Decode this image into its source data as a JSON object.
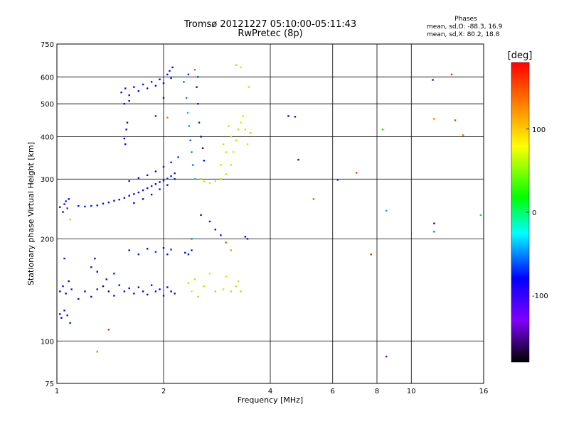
{
  "header": {
    "title": "Tromsø 20121227 05:10:00-05:11:43",
    "subtitle": "RwPretec (8p)"
  },
  "phases_box": {
    "heading": "Phases",
    "line_o": "mean, sd,O: -88.3, 16.9",
    "line_x": "mean, sd,X:  80.2, 18.8"
  },
  "colorbar": {
    "label": "[deg]",
    "range": [
      -180,
      180
    ],
    "ticks": [
      100,
      0,
      -100
    ],
    "colors": [
      "#ff0000",
      "#ff8000",
      "#ffff00",
      "#00ff00",
      "#00ffff",
      "#0000ff",
      "#8000ff",
      "#000000"
    ]
  },
  "chart_data": {
    "type": "scatter",
    "xlabel": "Frequency [MHz]",
    "ylabel": "Stationary phase Virtual Height [km]",
    "x_scale": "log",
    "y_scale": "log",
    "xlim": [
      1,
      16
    ],
    "ylim": [
      75,
      750
    ],
    "x_ticks": [
      1,
      2,
      4,
      6,
      8,
      10,
      16
    ],
    "y_ticks": [
      75,
      100,
      200,
      300,
      400,
      500,
      600,
      750
    ],
    "grid": true,
    "points": [
      [
        1.02,
        248,
        -105
      ],
      [
        1.04,
        240,
        -100
      ],
      [
        1.05,
        253,
        -110
      ],
      [
        1.06,
        258,
        -95
      ],
      [
        1.07,
        246,
        -85
      ],
      [
        1.08,
        262,
        -100
      ],
      [
        1.09,
        228,
        120
      ],
      [
        1.15,
        250,
        -105
      ],
      [
        1.2,
        249,
        -100
      ],
      [
        1.25,
        250,
        -95
      ],
      [
        1.3,
        251,
        -100
      ],
      [
        1.35,
        254,
        -105
      ],
      [
        1.4,
        256,
        -100
      ],
      [
        1.45,
        259,
        -110
      ],
      [
        1.5,
        261,
        -100
      ],
      [
        1.55,
        264,
        -95
      ],
      [
        1.6,
        268,
        -100
      ],
      [
        1.65,
        271,
        -105
      ],
      [
        1.7,
        274,
        -100
      ],
      [
        1.75,
        278,
        -110
      ],
      [
        1.8,
        282,
        -100
      ],
      [
        1.85,
        286,
        -95
      ],
      [
        1.9,
        290,
        -100
      ],
      [
        1.95,
        294,
        -105
      ],
      [
        2.0,
        297,
        -100
      ],
      [
        2.05,
        301,
        -90
      ],
      [
        2.1,
        306,
        -95
      ],
      [
        2.15,
        312,
        -100
      ],
      [
        1.6,
        296,
        -100
      ],
      [
        1.7,
        302,
        -110
      ],
      [
        1.8,
        308,
        -105
      ],
      [
        1.9,
        316,
        -100
      ],
      [
        2.0,
        326,
        -95
      ],
      [
        2.1,
        336,
        -90
      ],
      [
        2.2,
        348,
        -85
      ],
      [
        1.65,
        255,
        -100
      ],
      [
        1.75,
        262,
        -105
      ],
      [
        1.85,
        270,
        -100
      ],
      [
        1.95,
        280,
        -110
      ],
      [
        2.05,
        288,
        -100
      ],
      [
        2.15,
        300,
        -95
      ],
      [
        1.52,
        540,
        -105
      ],
      [
        1.56,
        555,
        -100
      ],
      [
        1.6,
        530,
        -110
      ],
      [
        1.65,
        560,
        -100
      ],
      [
        1.7,
        545,
        -105
      ],
      [
        1.75,
        570,
        -95
      ],
      [
        1.8,
        555,
        -100
      ],
      [
        1.85,
        580,
        -105
      ],
      [
        1.9,
        565,
        -110
      ],
      [
        1.95,
        590,
        -100
      ],
      [
        2.0,
        575,
        -105
      ],
      [
        2.05,
        610,
        -100
      ],
      [
        2.08,
        625,
        -95
      ],
      [
        2.1,
        595,
        -90
      ],
      [
        2.12,
        640,
        -100
      ],
      [
        1.55,
        500,
        -105
      ],
      [
        1.6,
        510,
        -100
      ],
      [
        2.0,
        520,
        -110
      ],
      [
        1.55,
        395,
        -100
      ],
      [
        1.56,
        380,
        -105
      ],
      [
        1.57,
        420,
        -110
      ],
      [
        1.58,
        440,
        -100
      ],
      [
        1.9,
        460,
        -120
      ],
      [
        2.05,
        455,
        140
      ],
      [
        2.28,
        580,
        -70
      ],
      [
        2.32,
        520,
        -60
      ],
      [
        2.34,
        470,
        -40
      ],
      [
        2.36,
        430,
        -50
      ],
      [
        2.38,
        390,
        -70
      ],
      [
        2.4,
        360,
        -55
      ],
      [
        2.42,
        330,
        -60
      ],
      [
        2.45,
        300,
        -40
      ],
      [
        2.48,
        560,
        -100
      ],
      [
        2.5,
        500,
        -95
      ],
      [
        2.52,
        440,
        -90
      ],
      [
        2.55,
        400,
        -100
      ],
      [
        2.58,
        370,
        -105
      ],
      [
        2.6,
        340,
        -100
      ],
      [
        2.35,
        610,
        -90
      ],
      [
        2.45,
        630,
        150
      ],
      [
        2.5,
        600,
        -80
      ],
      [
        2.55,
        300,
        90
      ],
      [
        2.6,
        295,
        100
      ],
      [
        2.7,
        292,
        110
      ],
      [
        2.8,
        296,
        105
      ],
      [
        2.9,
        300,
        95
      ],
      [
        3.0,
        310,
        100
      ],
      [
        3.1,
        330,
        105
      ],
      [
        3.15,
        360,
        110
      ],
      [
        3.2,
        390,
        100
      ],
      [
        3.25,
        420,
        95
      ],
      [
        3.3,
        440,
        105
      ],
      [
        3.35,
        460,
        110
      ],
      [
        3.4,
        420,
        100
      ],
      [
        3.45,
        380,
        105
      ],
      [
        3.48,
        560,
        100
      ],
      [
        3.2,
        650,
        120
      ],
      [
        3.3,
        640,
        110
      ],
      [
        3.52,
        410,
        120
      ],
      [
        2.9,
        330,
        100
      ],
      [
        3.0,
        360,
        105
      ],
      [
        3.1,
        400,
        110
      ],
      [
        2.95,
        380,
        100
      ],
      [
        3.05,
        430,
        95
      ],
      [
        1.02,
        120,
        -100
      ],
      [
        1.03,
        117,
        -105
      ],
      [
        1.05,
        123,
        -110
      ],
      [
        1.07,
        119,
        -100
      ],
      [
        1.09,
        113,
        -95
      ],
      [
        1.02,
        140,
        -100
      ],
      [
        1.04,
        145,
        -110
      ],
      [
        1.06,
        138,
        -105
      ],
      [
        1.08,
        150,
        -100
      ],
      [
        1.1,
        142,
        -115
      ],
      [
        1.2,
        140,
        -100
      ],
      [
        1.25,
        135,
        -105
      ],
      [
        1.3,
        142,
        -100
      ],
      [
        1.35,
        145,
        -110
      ],
      [
        1.4,
        140,
        -100
      ],
      [
        1.45,
        136,
        -95
      ],
      [
        1.5,
        146,
        -100
      ],
      [
        1.55,
        140,
        -110
      ],
      [
        1.6,
        143,
        -105
      ],
      [
        1.65,
        138,
        -100
      ],
      [
        1.7,
        144,
        -95
      ],
      [
        1.75,
        140,
        -100
      ],
      [
        1.8,
        137,
        -105
      ],
      [
        1.85,
        146,
        -100
      ],
      [
        1.9,
        140,
        -110
      ],
      [
        1.95,
        142,
        -100
      ],
      [
        2.0,
        136,
        -95
      ],
      [
        2.05,
        144,
        -100
      ],
      [
        2.1,
        140,
        -105
      ],
      [
        2.15,
        138,
        -100
      ],
      [
        1.6,
        185,
        -100
      ],
      [
        1.7,
        180,
        -95
      ],
      [
        1.8,
        187,
        -100
      ],
      [
        1.9,
        183,
        -85
      ],
      [
        2.0,
        188,
        -100
      ],
      [
        2.05,
        180,
        -95
      ],
      [
        2.1,
        186,
        -90
      ],
      [
        2.3,
        182,
        -100
      ],
      [
        2.35,
        180,
        -95
      ],
      [
        2.4,
        185,
        -100
      ],
      [
        2.35,
        148,
        100
      ],
      [
        2.4,
        140,
        110
      ],
      [
        2.45,
        152,
        95
      ],
      [
        2.5,
        135,
        120
      ],
      [
        2.6,
        145,
        100
      ],
      [
        2.7,
        158,
        105
      ],
      [
        2.8,
        140,
        90
      ],
      [
        2.95,
        142,
        100
      ],
      [
        3.0,
        155,
        110
      ],
      [
        3.1,
        140,
        95
      ],
      [
        3.2,
        145,
        100
      ],
      [
        3.25,
        150,
        105
      ],
      [
        3.3,
        140,
        90
      ],
      [
        1.25,
        165,
        -110
      ],
      [
        1.3,
        160,
        -100
      ],
      [
        1.28,
        175,
        -105
      ],
      [
        1.38,
        152,
        -100
      ],
      [
        1.45,
        158,
        -95
      ],
      [
        1.05,
        175,
        -120
      ],
      [
        1.15,
        133,
        -100
      ],
      [
        2.4,
        200,
        -60
      ],
      [
        2.55,
        235,
        -100
      ],
      [
        2.7,
        225,
        -95
      ],
      [
        2.8,
        213,
        -100
      ],
      [
        2.9,
        205,
        -110
      ],
      [
        3.0,
        195,
        150
      ],
      [
        3.1,
        185,
        130
      ],
      [
        3.4,
        203,
        -100
      ],
      [
        3.45,
        200,
        -90
      ],
      [
        1.4,
        108,
        170
      ],
      [
        1.3,
        93,
        140
      ],
      [
        4.5,
        460,
        -100
      ],
      [
        4.7,
        458,
        -90
      ],
      [
        4.8,
        342,
        -120
      ],
      [
        5.3,
        262,
        150
      ],
      [
        6.2,
        298,
        -70
      ],
      [
        7.0,
        313,
        160
      ],
      [
        7.7,
        180,
        170
      ],
      [
        8.3,
        420,
        40
      ],
      [
        8.5,
        242,
        -50
      ],
      [
        8.5,
        90,
        -140
      ],
      [
        11.5,
        588,
        -120
      ],
      [
        11.6,
        452,
        130
      ],
      [
        11.6,
        450,
        120
      ],
      [
        11.6,
        222,
        -100
      ],
      [
        11.6,
        210,
        -60
      ],
      [
        13.0,
        610,
        160
      ],
      [
        13.3,
        447,
        160
      ],
      [
        14.0,
        404,
        150
      ],
      [
        15.7,
        235,
        20
      ]
    ]
  }
}
